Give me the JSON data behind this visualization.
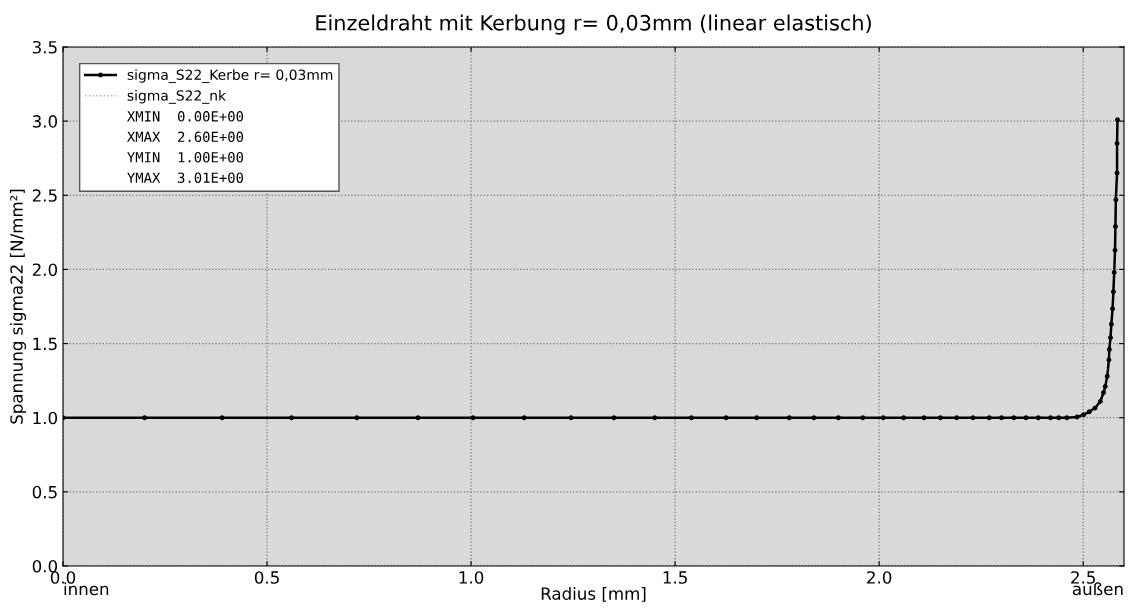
{
  "chart_data": {
    "type": "line",
    "title": "Einzeldraht mit Kerbung r= 0,03mm (linear elastisch)",
    "xlabel": "Radius [mm]",
    "ylabel": "Spannung sigma22 [N/mm²]",
    "annotations": [
      "XMIN  0.00E+00",
      "XMAX  2.60E+00",
      "YMIN  1.00E+00",
      "YMAX  3.01E+00",
      "innen",
      "außen"
    ],
    "series": [
      {
        "name": "sigma_S22_Kerbe r= 0,03mm",
        "color": "#000000",
        "marker": "circle",
        "line_style": "solid",
        "x": [
          0,
          0.2,
          0.39,
          0.56,
          0.72,
          0.87,
          1.005,
          1.13,
          1.245,
          1.35,
          1.45,
          1.54,
          1.625,
          1.7,
          1.78,
          1.84,
          1.9,
          1.96,
          2.01,
          2.06,
          2.11,
          2.15,
          2.19,
          2.23,
          2.27,
          2.3,
          2.33,
          2.36,
          2.39,
          2.42,
          2.44,
          2.46,
          2.485,
          2.501,
          2.515,
          2.529,
          2.542,
          2.55,
          2.554,
          2.559,
          2.563,
          2.564,
          2.567,
          2.569,
          2.572,
          2.574,
          2.576,
          2.578,
          2.579,
          2.58,
          2.583,
          2.583,
          2.584
        ],
        "values": [
          1,
          1,
          1,
          1,
          1,
          1,
          1,
          1,
          1,
          1,
          1,
          1,
          1,
          1,
          1,
          1,
          1,
          1,
          1,
          1,
          1,
          1,
          1,
          1,
          1,
          1,
          1,
          1,
          1,
          1,
          1,
          1,
          1.005,
          1.02,
          1.04,
          1.065,
          1.11,
          1.17,
          1.21,
          1.28,
          1.39,
          1.46,
          1.54,
          1.63,
          1.735,
          1.85,
          1.98,
          2.13,
          2.29,
          2.47,
          2.65,
          2.85,
          3.01
        ]
      },
      {
        "name": "sigma_S22_nk",
        "color": "#b0b0b0",
        "marker": "none",
        "line_style": "dotted"
      }
    ],
    "xlim": [
      0,
      2.6
    ],
    "ylim": [
      0,
      3.5
    ],
    "xticks": [
      {
        "value": 0,
        "label": "0.0"
      },
      0.5,
      {
        "value": 1,
        "label": "1.0"
      },
      1.5,
      {
        "value": 2,
        "label": "2.0"
      },
      2.5
    ],
    "yticks": [
      {
        "value": 0,
        "label": "0.0"
      },
      0.5,
      {
        "value": 1,
        "label": "1.0"
      },
      1.5,
      {
        "value": 2,
        "label": "2.0"
      },
      2.5,
      {
        "value": 3,
        "label": "3.0"
      },
      3.5
    ],
    "grid": true,
    "legend": "top left"
  }
}
